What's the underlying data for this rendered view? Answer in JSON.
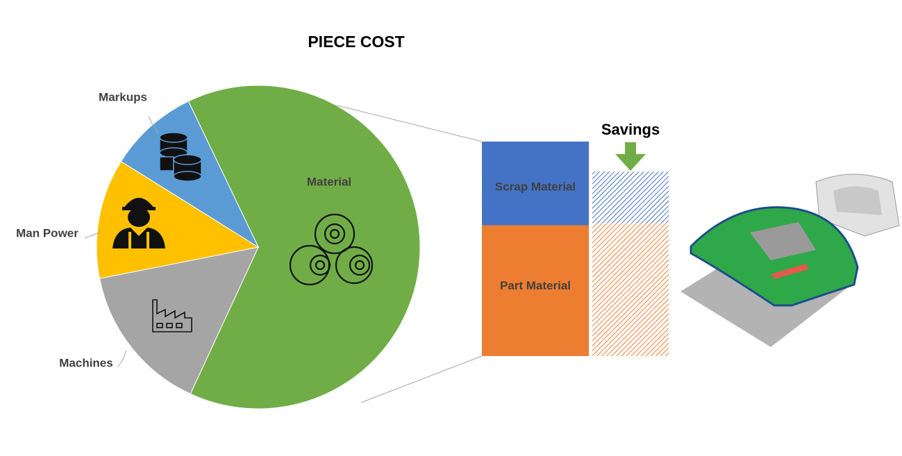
{
  "chart_data": [
    {
      "type": "pie",
      "title": "PIECE COST",
      "categories": [
        "Material",
        "Machines",
        "Man Power",
        "Markups"
      ],
      "values": [
        64,
        15,
        12,
        9
      ],
      "colors": [
        "#70ad47",
        "#a5a5a5",
        "#ffc000",
        "#5b9bd5"
      ]
    },
    {
      "type": "bar",
      "stacked": true,
      "annotation": "Savings",
      "categories": [
        null,
        null
      ],
      "series": [
        {
          "name": "Part Material",
          "color": "#ed7d31",
          "values": [
            61,
            62
          ]
        },
        {
          "name": "Scrap Material",
          "color": "#4472c4",
          "values": [
            39,
            24
          ]
        }
      ],
      "hatched": [
        false,
        true
      ]
    }
  ]
}
